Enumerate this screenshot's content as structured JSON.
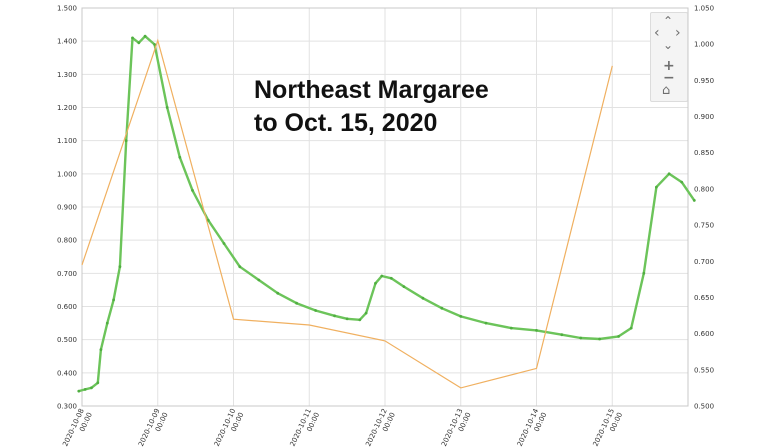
{
  "chart_data": {
    "type": "line",
    "annotation_lines": [
      "Northeast Margaree",
      "to Oct. 15, 2020"
    ],
    "x_tick_labels": [
      "2020-10-08\n00:00",
      "2020-10-09\n00:00",
      "2020-10-10\n00:00",
      "2020-10-11\n00:00",
      "2020-10-12\n00:00",
      "2020-10-13\n00:00",
      "2020-10-14\n00:00",
      "2020-10-15\n00:00"
    ],
    "xlim": [
      "2020-10-08 00:00",
      "2020-10-16 00:00"
    ],
    "y_left": {
      "ylim": [
        0.3,
        1.5
      ],
      "ticks": [
        "0.300",
        "0.400",
        "0.500",
        "0.600",
        "0.700",
        "0.800",
        "0.900",
        "1.000",
        "1.100",
        "1.200",
        "1.300",
        "1.400",
        "1.500"
      ]
    },
    "y_right": {
      "ylim": [
        0.5,
        1.05
      ],
      "ticks": [
        "0.500",
        "0.550",
        "0.600",
        "0.650",
        "0.700",
        "0.750",
        "0.800",
        "0.850",
        "0.900",
        "0.950",
        "1.000",
        "1.050"
      ]
    },
    "grid": true,
    "series": [
      {
        "color": "#6cc45a",
        "axis": "left",
        "points": [
          [
            "2020-10-07 23:00",
            0.345
          ],
          [
            "2020-10-08 01:00",
            0.35
          ],
          [
            "2020-10-08 03:00",
            0.355
          ],
          [
            "2020-10-08 05:00",
            0.37
          ],
          [
            "2020-10-08 06:00",
            0.47
          ],
          [
            "2020-10-08 08:00",
            0.55
          ],
          [
            "2020-10-08 10:00",
            0.62
          ],
          [
            "2020-10-08 12:00",
            0.72
          ],
          [
            "2020-10-08 14:00",
            1.1
          ],
          [
            "2020-10-08 16:00",
            1.41
          ],
          [
            "2020-10-08 18:00",
            1.395
          ],
          [
            "2020-10-08 20:00",
            1.415
          ],
          [
            "2020-10-08 23:00",
            1.39
          ],
          [
            "2020-10-09 03:00",
            1.2
          ],
          [
            "2020-10-09 07:00",
            1.05
          ],
          [
            "2020-10-09 11:00",
            0.95
          ],
          [
            "2020-10-09 16:00",
            0.86
          ],
          [
            "2020-10-09 21:00",
            0.79
          ],
          [
            "2020-10-10 02:00",
            0.72
          ],
          [
            "2020-10-10 08:00",
            0.68
          ],
          [
            "2020-10-10 14:00",
            0.64
          ],
          [
            "2020-10-10 20:00",
            0.61
          ],
          [
            "2020-10-11 02:00",
            0.588
          ],
          [
            "2020-10-11 08:00",
            0.572
          ],
          [
            "2020-10-11 12:00",
            0.563
          ],
          [
            "2020-10-11 16:00",
            0.56
          ],
          [
            "2020-10-11 18:00",
            0.58
          ],
          [
            "2020-10-11 21:00",
            0.67
          ],
          [
            "2020-10-11 23:00",
            0.692
          ],
          [
            "2020-10-12 02:00",
            0.685
          ],
          [
            "2020-10-12 06:00",
            0.66
          ],
          [
            "2020-10-12 12:00",
            0.625
          ],
          [
            "2020-10-12 18:00",
            0.595
          ],
          [
            "2020-10-13 00:00",
            0.57
          ],
          [
            "2020-10-13 08:00",
            0.55
          ],
          [
            "2020-10-13 16:00",
            0.535
          ],
          [
            "2020-10-14 00:00",
            0.528
          ],
          [
            "2020-10-14 08:00",
            0.515
          ],
          [
            "2020-10-14 14:00",
            0.505
          ],
          [
            "2020-10-14 20:00",
            0.502
          ],
          [
            "2020-10-15 02:00",
            0.51
          ],
          [
            "2020-10-15 06:00",
            0.535
          ],
          [
            "2020-10-15 10:00",
            0.7
          ],
          [
            "2020-10-15 14:00",
            0.96
          ],
          [
            "2020-10-15 18:00",
            1.0
          ],
          [
            "2020-10-15 22:00",
            0.975
          ],
          [
            "2020-10-16 02:00",
            0.92
          ]
        ]
      },
      {
        "color": "#f0b060",
        "axis": "right",
        "points": [
          [
            "2020-10-08 00:00",
            0.695
          ],
          [
            "2020-10-09 00:00",
            1.005
          ],
          [
            "2020-10-10 00:00",
            0.62
          ],
          [
            "2020-10-11 00:00",
            0.612
          ],
          [
            "2020-10-12 00:00",
            0.59
          ],
          [
            "2020-10-13 00:00",
            0.525
          ],
          [
            "2020-10-14 00:00",
            0.552
          ],
          [
            "2020-10-15 00:00",
            0.97
          ]
        ]
      }
    ]
  },
  "controls": {
    "pan_up": "⌃",
    "pan_left": "‹",
    "pan_right": "›",
    "pan_down": "⌄",
    "zoom_in": "+",
    "zoom_out": "−",
    "home": "⌂"
  }
}
